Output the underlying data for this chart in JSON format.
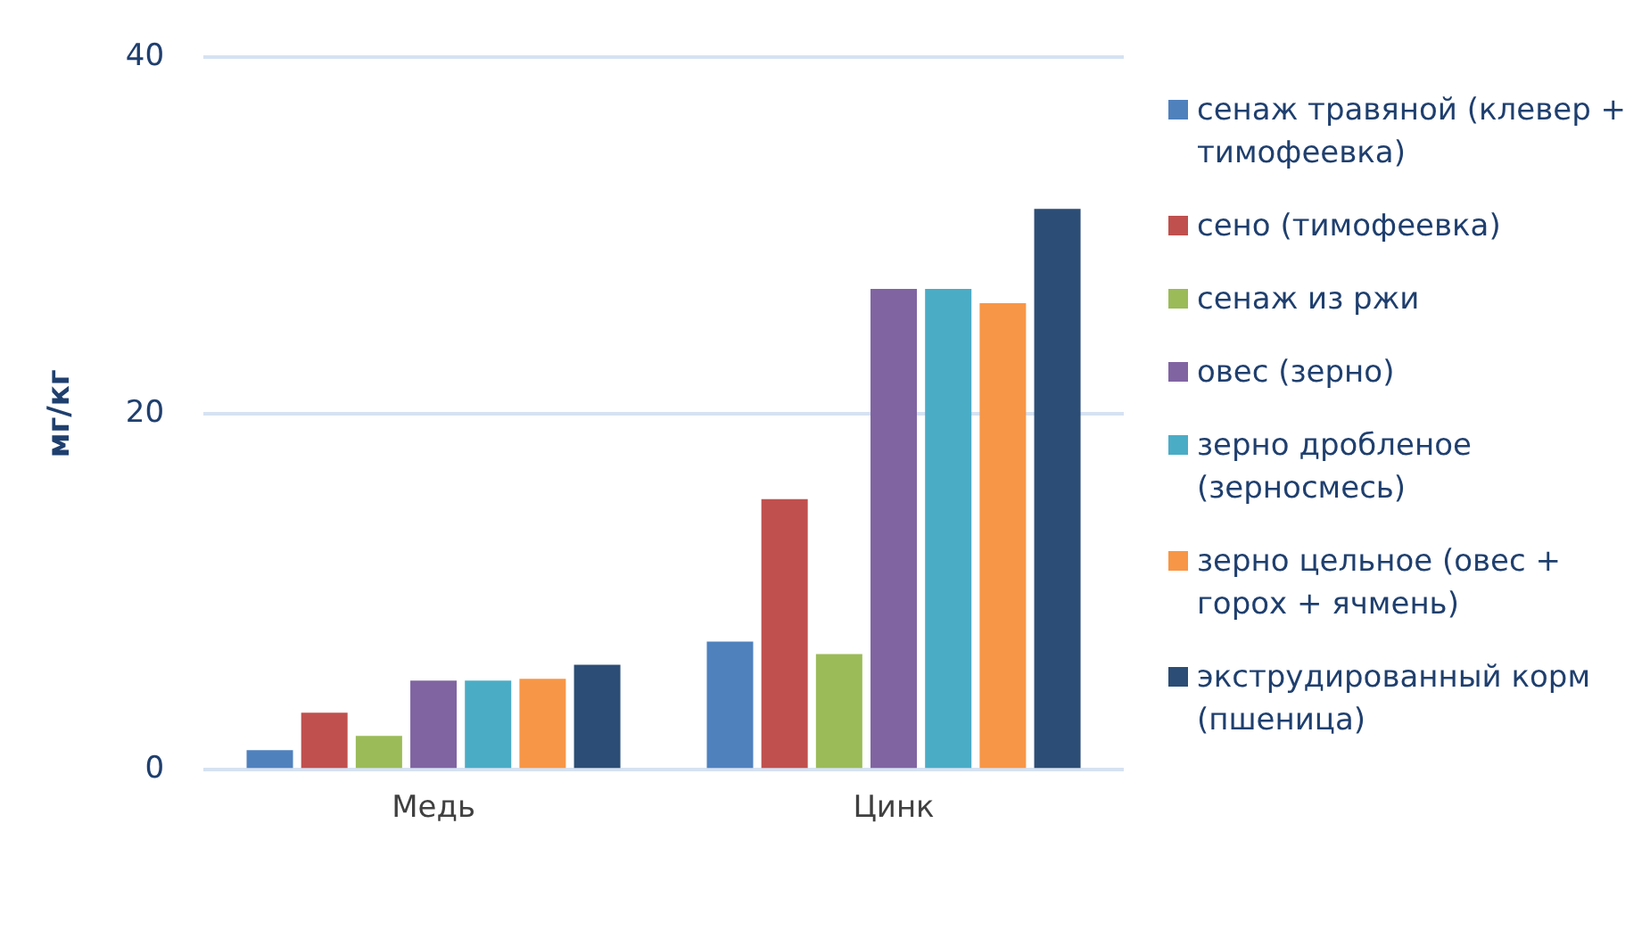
{
  "chart_data": {
    "type": "bar",
    "ylabel": "мг/кг",
    "categories": [
      "Медь",
      "Цинк"
    ],
    "series": [
      {
        "name": "сенаж травяной (клевер + тимофеевка)",
        "color": "#4f81bd",
        "values": [
          1.1,
          7.2
        ]
      },
      {
        "name": "сено (тимофеевка)",
        "color": "#c0504d",
        "values": [
          3.2,
          15.2
        ]
      },
      {
        "name": "сенаж из ржи",
        "color": "#9bbb59",
        "values": [
          1.9,
          6.5
        ]
      },
      {
        "name": "овес (зерно)",
        "color": "#8064a2",
        "values": [
          5.0,
          27.0
        ]
      },
      {
        "name": "зерно дробленое (зерносмесь)",
        "color": "#4bacc6",
        "values": [
          5.0,
          27.0
        ]
      },
      {
        "name": "зерно цельное (овес + горох + ячмень)",
        "color": "#f79646",
        "values": [
          5.1,
          26.2
        ]
      },
      {
        "name": "экструдированный корм (пшеница)",
        "color": "#2c4d75",
        "values": [
          5.9,
          31.5
        ]
      }
    ],
    "ylim": [
      0,
      40
    ],
    "yticks": [
      0,
      20,
      40
    ],
    "grid": "y",
    "legend": "right"
  }
}
